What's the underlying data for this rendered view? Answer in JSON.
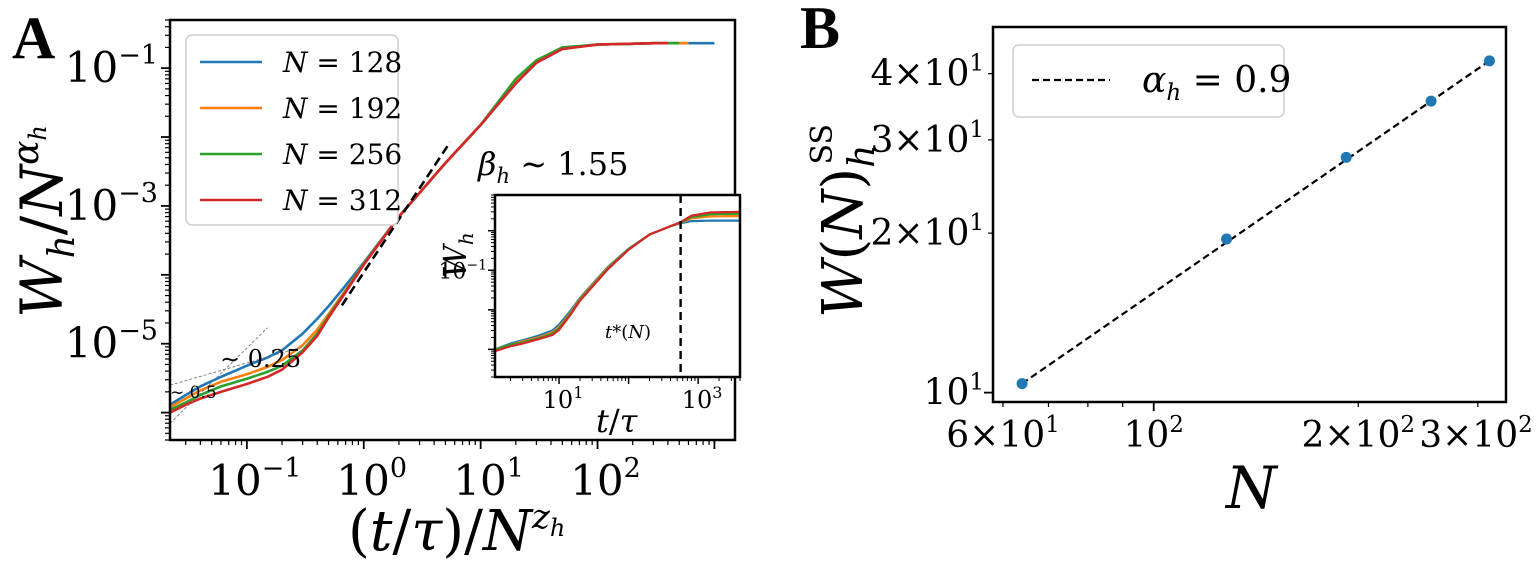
{
  "chart_data": [
    {
      "panel": "A",
      "type": "line",
      "panel_label": "A",
      "xscale": "log",
      "yscale": "log",
      "xlim": [
        0.022,
        1500
      ],
      "ylim": [
        4e-07,
        0.5
      ],
      "xlabel_parts": [
        "(",
        "t",
        "/",
        "τ",
        ")/",
        "N",
        "z",
        "h"
      ],
      "ylabel_parts": [
        "W",
        "h",
        "/",
        "N",
        "α",
        "h"
      ],
      "xticks": [
        {
          "value": 0.1,
          "base": "10",
          "exp": "−1"
        },
        {
          "value": 1,
          "base": "10",
          "exp": "0"
        },
        {
          "value": 10,
          "base": "10",
          "exp": "1"
        },
        {
          "value": 100,
          "base": "10",
          "exp": "2"
        }
      ],
      "yticks": [
        {
          "value": 0.1,
          "base": "10",
          "exp": "−1"
        },
        {
          "value": 0.001,
          "base": "10",
          "exp": "−3"
        },
        {
          "value": 1e-05,
          "base": "10",
          "exp": "−5"
        }
      ],
      "legend": {
        "position": "upper-left"
      },
      "series": [
        {
          "name": "N = 128",
          "label_var": "N",
          "label_val": "128",
          "color": "#1f77b4",
          "x": [
            0.022,
            0.03,
            0.04,
            0.06,
            0.1,
            0.15,
            0.2,
            0.3,
            0.4,
            0.5,
            0.7,
            1.0,
            2,
            5,
            10,
            20,
            30,
            50,
            100,
            300,
            1000
          ],
          "y": [
            1.3e-06,
            1.8e-06,
            2.4e-06,
            3.3e-06,
            4.8e-06,
            6.3e-06,
            8e-06,
            1.4e-05,
            2.3e-05,
            3.5e-05,
            7e-05,
            0.00015,
            0.0007,
            0.0042,
            0.015,
            0.06,
            0.12,
            0.19,
            0.22,
            0.23,
            0.23
          ]
        },
        {
          "name": "N = 192",
          "label_var": "N",
          "label_val": "192",
          "color": "#ff7f0e",
          "x": [
            0.022,
            0.03,
            0.04,
            0.06,
            0.1,
            0.15,
            0.2,
            0.3,
            0.4,
            0.5,
            0.7,
            1.0,
            2,
            5,
            10,
            20,
            30,
            50,
            100,
            300,
            600
          ],
          "y": [
            1.2e-06,
            1.6e-06,
            2.1e-06,
            2.8e-06,
            3.6e-06,
            4.6e-06,
            5.8e-06,
            9.5e-06,
            1.6e-05,
            2.7e-05,
            6e-05,
            0.000145,
            0.0007,
            0.0042,
            0.015,
            0.065,
            0.125,
            0.19,
            0.22,
            0.23,
            0.23
          ]
        },
        {
          "name": "N = 256",
          "label_var": "N",
          "label_val": "256",
          "color": "#2ca02c",
          "x": [
            0.022,
            0.03,
            0.04,
            0.06,
            0.1,
            0.15,
            0.2,
            0.3,
            0.4,
            0.5,
            0.7,
            1.0,
            2,
            5,
            10,
            20,
            30,
            50,
            100,
            300,
            500
          ],
          "y": [
            1.1e-06,
            1.4e-06,
            1.8e-06,
            2.4e-06,
            3.1e-06,
            3.9e-06,
            4.8e-06,
            8e-06,
            1.4e-05,
            2.5e-05,
            5.8e-05,
            0.000145,
            0.0007,
            0.0042,
            0.015,
            0.07,
            0.13,
            0.2,
            0.22,
            0.23,
            0.23
          ]
        },
        {
          "name": "N = 312",
          "label_var": "N",
          "label_val": "312",
          "color": "#d62728",
          "x": [
            0.022,
            0.03,
            0.04,
            0.06,
            0.1,
            0.15,
            0.2,
            0.3,
            0.4,
            0.5,
            0.7,
            1.0,
            2,
            5,
            10,
            20,
            30,
            50,
            100,
            300,
            400
          ],
          "y": [
            1e-06,
            1.3e-06,
            1.6e-06,
            2e-06,
            2.6e-06,
            3.3e-06,
            4.2e-06,
            7.5e-06,
            1.3e-05,
            2.4e-05,
            5.6e-05,
            0.00014,
            0.0007,
            0.0042,
            0.015,
            0.06,
            0.12,
            0.19,
            0.22,
            0.23,
            0.23
          ]
        }
      ],
      "guides": [
        {
          "label_parts": [
            "β",
            "h",
            " ∼ 1.55"
          ],
          "style": "dashed",
          "x": [
            0.65,
            5.5
          ],
          "y": [
            3.6e-05,
            0.0085
          ]
        },
        {
          "label": "∼ 0.25",
          "style": "thin",
          "x": [
            0.022,
            0.3
          ],
          "y": [
            2.5e-06,
            9e-06
          ]
        },
        {
          "label": "∼ 0.5",
          "style": "thin",
          "x": [
            0.022,
            0.15
          ],
          "y": [
            7e-07,
            1.7e-05
          ]
        }
      ],
      "inset": {
        "xscale": "log",
        "yscale": "log",
        "xlim": [
          1.2,
          4000
        ],
        "ylim": [
          0.0002,
          8
        ],
        "xlabel_parts": [
          "t",
          "/",
          "τ"
        ],
        "ylabel_parts": [
          "W",
          "h"
        ],
        "xticks": [
          {
            "value": 10,
            "base": "10",
            "exp": "1"
          },
          {
            "value": 1000,
            "base": "10",
            "exp": "3"
          }
        ],
        "yticks": [
          {
            "value": 0.1,
            "base": "10",
            "exp": "−1"
          }
        ],
        "vline_x": 560,
        "vline_label_parts": [
          "t",
          "*(",
          "N",
          ")"
        ],
        "series": [
          {
            "color": "#1f77b4",
            "x": [
              1.2,
              2,
              3,
              5,
              8,
              10,
              15,
              20,
              50,
              100,
              200,
              400,
              560,
              800,
              1500,
              4000
            ],
            "y": [
              0.001,
              0.0014,
              0.0017,
              0.0022,
              0.003,
              0.0042,
              0.01,
              0.02,
              0.12,
              0.35,
              0.8,
              1.3,
              1.55,
              1.75,
              1.8,
              1.8
            ]
          },
          {
            "color": "#ff7f0e",
            "x": [
              1.2,
              2,
              3,
              5,
              8,
              10,
              15,
              20,
              50,
              100,
              200,
              400,
              560,
              800,
              1500,
              4000
            ],
            "y": [
              0.001,
              0.0013,
              0.0016,
              0.002,
              0.0027,
              0.0037,
              0.009,
              0.019,
              0.115,
              0.34,
              0.8,
              1.3,
              1.6,
              2.05,
              2.3,
              2.35
            ]
          },
          {
            "color": "#2ca02c",
            "x": [
              1.2,
              2,
              3,
              5,
              8,
              10,
              15,
              20,
              50,
              100,
              200,
              400,
              560,
              800,
              1500,
              4000
            ],
            "y": [
              0.001,
              0.0013,
              0.0015,
              0.0019,
              0.0025,
              0.0034,
              0.0085,
              0.018,
              0.11,
              0.34,
              0.8,
              1.3,
              1.62,
              2.2,
              2.6,
              2.7
            ]
          },
          {
            "color": "#d62728",
            "x": [
              1.2,
              2,
              3,
              5,
              8,
              10,
              15,
              20,
              50,
              100,
              200,
              400,
              560,
              800,
              1500,
              4000
            ],
            "y": [
              0.0009,
              0.0012,
              0.0014,
              0.0018,
              0.0023,
              0.0031,
              0.008,
              0.017,
              0.105,
              0.33,
              0.8,
              1.3,
              1.65,
              2.4,
              2.9,
              3.0
            ]
          }
        ]
      }
    },
    {
      "panel": "B",
      "type": "scatter",
      "panel_label": "B",
      "xscale": "log",
      "yscale": "log",
      "xlim": [
        58,
        330
      ],
      "ylim": [
        9.6,
        49
      ],
      "xlabel_parts": [
        "N"
      ],
      "ylabel_parts": [
        "W",
        "(",
        "N",
        ")",
        "h",
        "SS"
      ],
      "xticks": [
        {
          "value": 60,
          "pre": "6×",
          "base": "10",
          "exp": "1"
        },
        {
          "value": 100,
          "pre": "",
          "base": "10",
          "exp": "2"
        },
        {
          "value": 200,
          "pre": "2×",
          "base": "10",
          "exp": "2"
        },
        {
          "value": 300,
          "pre": "3×",
          "base": "10",
          "exp": "2"
        }
      ],
      "yticks": [
        {
          "value": 10,
          "pre": "",
          "base": "10",
          "exp": "1"
        },
        {
          "value": 20,
          "pre": "2×",
          "base": "10",
          "exp": "1"
        },
        {
          "value": 30,
          "pre": "3×",
          "base": "10",
          "exp": "1"
        },
        {
          "value": 40,
          "pre": "4×",
          "base": "10",
          "exp": "1"
        }
      ],
      "points": {
        "color": "#1f77b4",
        "x": [
          64,
          128,
          192,
          256,
          312
        ],
        "y": [
          10.4,
          19.5,
          27.8,
          35.5,
          42.3
        ]
      },
      "fit": {
        "color": "#000000",
        "style": "dashed",
        "x": [
          64,
          312
        ],
        "y": [
          10.4,
          42.3
        ],
        "legend_parts": [
          "α",
          "h",
          " = 0.9"
        ]
      },
      "legend": {
        "position": "upper-left"
      }
    }
  ]
}
